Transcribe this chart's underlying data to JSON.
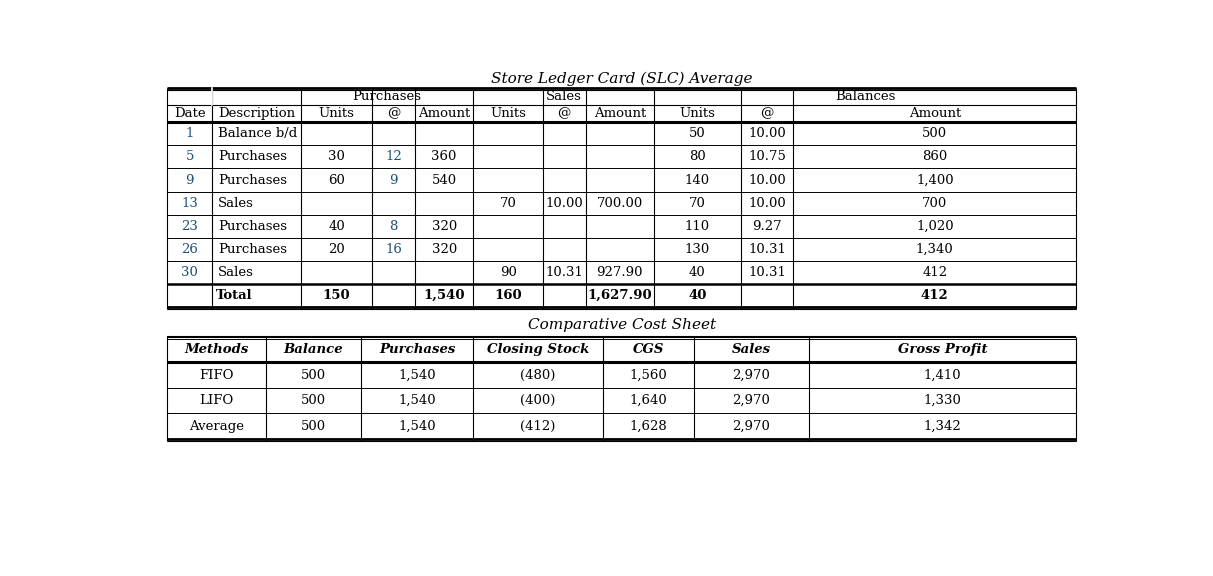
{
  "title1": "Store Ledger Card (SLC) Average",
  "title2": "Comparative Cost Sheet",
  "slc_rows": [
    {
      "date": "1",
      "desc": "Balance b/d",
      "pu": [
        "",
        "",
        ""
      ],
      "sa": [
        "",
        "",
        ""
      ],
      "ba": [
        "50",
        "10.00",
        "500"
      ]
    },
    {
      "date": "5",
      "desc": "Purchases",
      "pu": [
        "30",
        "12",
        "360"
      ],
      "sa": [
        "",
        "",
        ""
      ],
      "ba": [
        "80",
        "10.75",
        "860"
      ]
    },
    {
      "date": "9",
      "desc": "Purchases",
      "pu": [
        "60",
        "9",
        "540"
      ],
      "sa": [
        "",
        "",
        ""
      ],
      "ba": [
        "140",
        "10.00",
        "1,400"
      ]
    },
    {
      "date": "13",
      "desc": "Sales",
      "pu": [
        "",
        "",
        ""
      ],
      "sa": [
        "70",
        "10.00",
        "700.00"
      ],
      "ba": [
        "70",
        "10.00",
        "700"
      ]
    },
    {
      "date": "23",
      "desc": "Purchases",
      "pu": [
        "40",
        "8",
        "320"
      ],
      "sa": [
        "",
        "",
        ""
      ],
      "ba": [
        "110",
        "9.27",
        "1,020"
      ]
    },
    {
      "date": "26",
      "desc": "Purchases",
      "pu": [
        "20",
        "16",
        "320"
      ],
      "sa": [
        "",
        "",
        ""
      ],
      "ba": [
        "130",
        "10.31",
        "1,340"
      ]
    },
    {
      "date": "30",
      "desc": "Sales",
      "pu": [
        "",
        "",
        ""
      ],
      "sa": [
        "90",
        "10.31",
        "927.90"
      ],
      "ba": [
        "40",
        "10.31",
        "412"
      ]
    }
  ],
  "slc_total": {
    "label": "Total",
    "pu_units": "150",
    "pu_amt": "1,540",
    "sa_units": "160",
    "sa_amt": "1,627.90",
    "ba_units": "40",
    "ba_amt": "412"
  },
  "comp_headers": [
    "Methods",
    "Balance",
    "Purchases",
    "Closing Stock",
    "CGS",
    "Sales",
    "Gross Profit"
  ],
  "comp_rows": [
    [
      "FIFO",
      "500",
      "1,540",
      "(480)",
      "1,560",
      "2,970",
      "1,410"
    ],
    [
      "LIFO",
      "500",
      "1,540",
      "(400)",
      "1,640",
      "2,970",
      "1,330"
    ],
    [
      "Average",
      "500",
      "1,540",
      "(412)",
      "1,628",
      "2,970",
      "1,342"
    ]
  ],
  "blue_color": "#1A5276",
  "black_color": "#000000",
  "bg_color": "#FFFFFF"
}
